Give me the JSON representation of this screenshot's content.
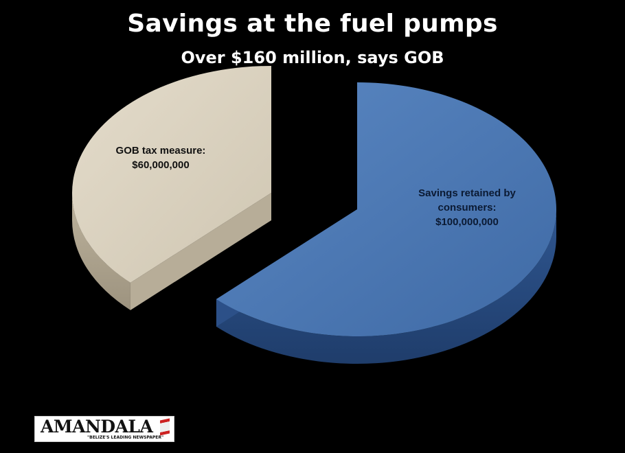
{
  "chart_data": {
    "type": "pie",
    "title": "Savings at the fuel pumps",
    "subtitle": "Over $160 million, says GOB",
    "categories": [
      "GOB tax measure:",
      "Savings retained by consumers:"
    ],
    "values": [
      60000000,
      100000000
    ],
    "data_labels": [
      "$60,000,000",
      "$100,000,000"
    ],
    "colors": {
      "gob": "#d8d0bf",
      "savings": "#4a75b0"
    }
  },
  "labels": {
    "gob_line1": "GOB tax measure:",
    "gob_line2": "$60,000,000",
    "savings_line1": "Savings retained by",
    "savings_line2": "consumers:",
    "savings_line3": "$100,000,000"
  },
  "logo": {
    "name": "AMANDALA",
    "tagline": "\"BELIZE'S LEADING NEWSPAPER\""
  }
}
